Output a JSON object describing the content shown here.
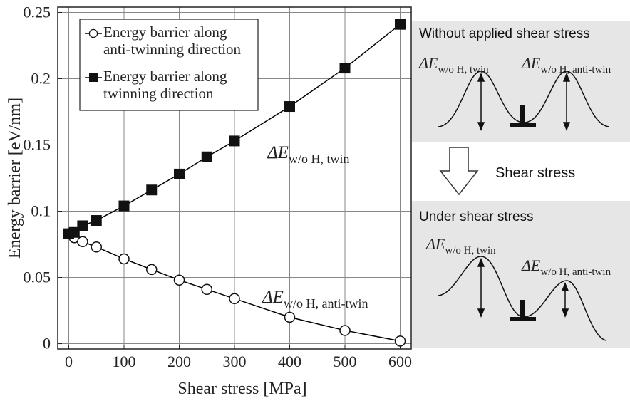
{
  "chart_data": {
    "type": "line",
    "x_label": "Shear stress [MPa]",
    "y_label": "Energy barrier [eV/nm]",
    "x": [
      0,
      10,
      25,
      50,
      100,
      150,
      200,
      250,
      300,
      400,
      500,
      600
    ],
    "series": [
      {
        "name": "Energy barrier along anti-twinning direction",
        "color": "#000000",
        "marker": "open-circle",
        "values": [
          0.083,
          0.08,
          0.077,
          0.073,
          0.064,
          0.056,
          0.048,
          0.041,
          0.034,
          0.02,
          0.01,
          0.002
        ]
      },
      {
        "name": "Energy barrier along twinning direction",
        "color": "#000000",
        "marker": "filled-square",
        "values": [
          0.083,
          0.084,
          0.089,
          0.093,
          0.104,
          0.116,
          0.128,
          0.141,
          0.153,
          0.179,
          0.208,
          0.241
        ]
      }
    ],
    "xlim": [
      -20,
      620
    ],
    "xticks": [
      0,
      100,
      200,
      300,
      400,
      500,
      600
    ],
    "ylim": [
      -0.004,
      0.254
    ],
    "yticks": [
      0,
      0.05,
      0.1,
      0.15,
      0.2,
      0.25
    ],
    "grid": true,
    "legend": "upper-left",
    "annotations": [
      {
        "symbol": "ΔE",
        "subscript": "w/o H, twin"
      },
      {
        "symbol": "ΔE",
        "subscript": "w/o H, anti-twin"
      }
    ]
  },
  "diagram": {
    "top_panel": {
      "title": "Without applied shear stress",
      "labels": [
        {
          "symbol": "ΔE",
          "subscript": "w/o H, twin"
        },
        {
          "symbol": "ΔE",
          "subscript": "w/o H, anti-twin"
        }
      ]
    },
    "arrow_label": "Shear stress",
    "bottom_panel": {
      "title": "Under shear stress",
      "labels": [
        {
          "symbol": "ΔE",
          "subscript": "w/o H, twin"
        },
        {
          "symbol": "ΔE",
          "subscript": "w/o H, anti-twin"
        }
      ]
    }
  }
}
